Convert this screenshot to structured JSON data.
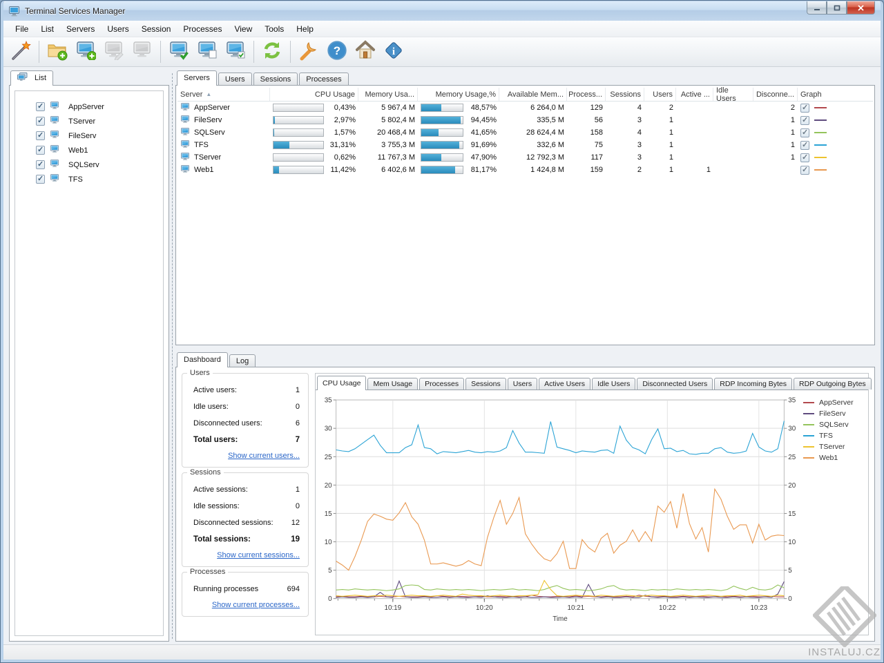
{
  "window": {
    "title": "Terminal Services Manager"
  },
  "titlebar_buttons": {
    "minimize": "minimize",
    "maximize": "maximize",
    "close": "close"
  },
  "menu": {
    "items": [
      "File",
      "List",
      "Servers",
      "Users",
      "Session",
      "Processes",
      "View",
      "Tools",
      "Help"
    ]
  },
  "toolbar": {
    "buttons": [
      {
        "icon": "wizard-wand-icon",
        "enabled": true
      },
      {
        "separator": true
      },
      {
        "icon": "add-group-folder-icon",
        "enabled": true
      },
      {
        "icon": "add-server-icon",
        "enabled": true
      },
      {
        "icon": "edit-server-icon",
        "enabled": false
      },
      {
        "icon": "delete-server-icon",
        "enabled": false
      },
      {
        "separator": true
      },
      {
        "icon": "connect-server-icon",
        "enabled": true
      },
      {
        "icon": "disconnect-server-icon",
        "enabled": true
      },
      {
        "icon": "connect-checked-icon",
        "enabled": true
      },
      {
        "separator": true
      },
      {
        "icon": "refresh-icon",
        "enabled": true
      },
      {
        "separator": true
      },
      {
        "icon": "options-wrench-icon",
        "enabled": true
      },
      {
        "icon": "help-icon",
        "enabled": true
      },
      {
        "icon": "home-icon",
        "enabled": true
      },
      {
        "icon": "about-info-icon",
        "enabled": true
      }
    ]
  },
  "sidebar": {
    "tab_label": "List",
    "servers": [
      {
        "name": "AppServer",
        "checked": true
      },
      {
        "name": "TServer",
        "checked": true
      },
      {
        "name": "FileServ",
        "checked": true
      },
      {
        "name": "Web1",
        "checked": true
      },
      {
        "name": "SQLServ",
        "checked": true
      },
      {
        "name": "TFS",
        "checked": true
      }
    ]
  },
  "main_tabs": {
    "items": [
      "Servers",
      "Users",
      "Sessions",
      "Processes"
    ],
    "active": "Servers"
  },
  "servers_table": {
    "columns": [
      "Server",
      "CPU Usage",
      "Memory Usa...",
      "Memory Usage,%",
      "Available Mem...",
      "Process...",
      "Sessions",
      "Users",
      "Active ...",
      "Idle Users",
      "Disconne...",
      "Graph"
    ],
    "sort_column": "Server",
    "rows": [
      {
        "name": "AppServer",
        "cpu_pct": 0.43,
        "cpu_text": "0,43%",
        "mem": "5 967,4 M",
        "mem_pct": 48.57,
        "mem_pct_text": "48,57%",
        "avail": "6 264,0 M",
        "processes": "129",
        "sessions": "4",
        "users": "2",
        "active": "",
        "idle": "",
        "disconnected": "2",
        "graph_checked": true,
        "color": "#b2484d"
      },
      {
        "name": "FileServ",
        "cpu_pct": 2.97,
        "cpu_text": "2,97%",
        "mem": "5 802,4 M",
        "mem_pct": 94.45,
        "mem_pct_text": "94,45%",
        "avail": "335,5 M",
        "processes": "56",
        "sessions": "3",
        "users": "1",
        "active": "",
        "idle": "",
        "disconnected": "1",
        "graph_checked": true,
        "color": "#5f4b7e"
      },
      {
        "name": "SQLServ",
        "cpu_pct": 1.57,
        "cpu_text": "1,57%",
        "mem": "20 468,4 M",
        "mem_pct": 41.65,
        "mem_pct_text": "41,65%",
        "avail": "28 624,4 M",
        "processes": "158",
        "sessions": "4",
        "users": "1",
        "active": "",
        "idle": "",
        "disconnected": "1",
        "graph_checked": true,
        "color": "#94c45c"
      },
      {
        "name": "TFS",
        "cpu_pct": 31.31,
        "cpu_text": "31,31%",
        "mem": "3 755,3 M",
        "mem_pct": 91.69,
        "mem_pct_text": "91,69%",
        "avail": "332,6 M",
        "processes": "75",
        "sessions": "3",
        "users": "1",
        "active": "",
        "idle": "",
        "disconnected": "1",
        "graph_checked": true,
        "color": "#2aa3d5"
      },
      {
        "name": "TServer",
        "cpu_pct": 0.62,
        "cpu_text": "0,62%",
        "mem": "11 767,3 M",
        "mem_pct": 47.9,
        "mem_pct_text": "47,90%",
        "avail": "12 792,3 M",
        "processes": "117",
        "sessions": "3",
        "users": "1",
        "active": "",
        "idle": "",
        "disconnected": "1",
        "graph_checked": true,
        "color": "#edc32f"
      },
      {
        "name": "Web1",
        "cpu_pct": 11.42,
        "cpu_text": "11,42%",
        "mem": "6 402,6 M",
        "mem_pct": 81.17,
        "mem_pct_text": "81,17%",
        "avail": "1 424,8 M",
        "processes": "159",
        "sessions": "2",
        "users": "1",
        "active": "1",
        "idle": "",
        "disconnected": "",
        "graph_checked": true,
        "color": "#e9984f"
      }
    ]
  },
  "bottom_tabs": {
    "items": [
      "Dashboard",
      "Log"
    ],
    "active": "Dashboard"
  },
  "dashboard": {
    "users": {
      "title": "Users",
      "rows": [
        {
          "label": "Active users:",
          "value": "1"
        },
        {
          "label": "Idle users:",
          "value": "0"
        },
        {
          "label": "Disconnected users:",
          "value": "6"
        }
      ],
      "total_label": "Total users:",
      "total_value": "7",
      "link": "Show current users..."
    },
    "sessions": {
      "title": "Sessions",
      "rows": [
        {
          "label": "Active sessions:",
          "value": "1"
        },
        {
          "label": "Idle sessions:",
          "value": "0"
        },
        {
          "label": "Disconnected sessions:",
          "value": "12"
        }
      ],
      "total_label": "Total sessions:",
      "total_value": "19",
      "link": "Show current sessions..."
    },
    "processes": {
      "title": "Processes",
      "rows": [
        {
          "label": "Running processes",
          "value": "694"
        }
      ],
      "link": "Show current processes..."
    }
  },
  "chart_tabs": {
    "items": [
      "CPU Usage",
      "Mem Usage",
      "Processes",
      "Sessions",
      "Users",
      "Active Users",
      "Idle Users",
      "Disconnected Users",
      "RDP Incoming Bytes",
      "RDP Outgoing Bytes"
    ],
    "active": "CPU Usage"
  },
  "chart_data": {
    "type": "line",
    "title": "CPU Usage",
    "xlabel": "Time",
    "ylabel": "",
    "ylim": [
      0,
      35
    ],
    "yticks": [
      0,
      5,
      10,
      15,
      20,
      25,
      30,
      35
    ],
    "grid": true,
    "legend_position": "right",
    "x_ticks": [
      {
        "index": 9,
        "label": "10:19"
      },
      {
        "index": 23.5,
        "label": "10:20"
      },
      {
        "index": 38,
        "label": "10:21"
      },
      {
        "index": 52.5,
        "label": "10:22"
      },
      {
        "index": 67,
        "label": "10:23"
      }
    ],
    "series": [
      {
        "name": "AppServer",
        "color": "#b2484d",
        "values": [
          0.3,
          0.4,
          0.3,
          0.3,
          0.4,
          0.3,
          0.3,
          0.4,
          0.3,
          0.3,
          0.4,
          0.3,
          0.3,
          0.3,
          0.4,
          0.3,
          0.5,
          0.4,
          0.3,
          0.3,
          0.4,
          0.3,
          0.3,
          0.4,
          0.3,
          0.3,
          0.4,
          0.3,
          0.4,
          0.3,
          0.3,
          0.6,
          0.4,
          0.3,
          0.3,
          0.4,
          0.3,
          0.3,
          0.5,
          0.3,
          0.4,
          0.3,
          0.3,
          0.4,
          0.3,
          0.3,
          0.4,
          0.3,
          0.6,
          0.4,
          0.3,
          0.3,
          0.4,
          0.3,
          0.3,
          0.4,
          0.3,
          0.3,
          0.4,
          0.3,
          0.3,
          0.4,
          0.3,
          0.4,
          0.3,
          0.3,
          0.4,
          0.3,
          0.3,
          0.4,
          0.3,
          0.3
        ]
      },
      {
        "name": "FileServ",
        "color": "#5f4b7e",
        "values": [
          0.2,
          0.3,
          0.2,
          0.2,
          0.3,
          0.2,
          0.3,
          1.1,
          0.3,
          0.2,
          3.1,
          0.3,
          0.2,
          0.2,
          0.3,
          0.2,
          0.2,
          0.3,
          0.2,
          0.3,
          0.2,
          0.2,
          0.3,
          0.2,
          0.5,
          0.3,
          0.2,
          0.2,
          0.3,
          0.2,
          0.3,
          0.2,
          0.2,
          0.3,
          0.2,
          0.2,
          0.3,
          0.2,
          0.3,
          0.2,
          2.5,
          0.4,
          0.2,
          0.3,
          0.2,
          0.2,
          0.3,
          0.2,
          0.2,
          0.6,
          0.3,
          0.2,
          0.3,
          0.2,
          0.2,
          0.3,
          0.2,
          0.3,
          0.2,
          0.2,
          0.3,
          0.2,
          0.2,
          0.3,
          0.2,
          0.3,
          0.2,
          0.2,
          0.3,
          0.2,
          0.8,
          3.0
        ]
      },
      {
        "name": "SQLServ",
        "color": "#94c45c",
        "values": [
          1.5,
          1.6,
          1.5,
          1.7,
          1.6,
          1.5,
          1.6,
          1.5,
          1.4,
          1.5,
          1.7,
          2.3,
          2.4,
          2.3,
          1.6,
          1.5,
          1.7,
          1.6,
          1.5,
          1.6,
          1.5,
          1.6,
          1.5,
          1.4,
          1.5,
          1.6,
          1.5,
          1.6,
          1.7,
          1.5,
          1.6,
          1.5,
          1.4,
          1.6,
          2.0,
          2.3,
          1.8,
          1.5,
          1.6,
          1.5,
          1.4,
          1.5,
          1.7,
          2.1,
          2.3,
          1.7,
          1.5,
          1.6,
          1.5,
          1.4,
          1.6,
          1.5,
          1.6,
          1.5,
          1.7,
          1.6,
          1.5,
          1.6,
          1.5,
          1.6,
          1.5,
          1.4,
          1.6,
          2.2,
          1.8,
          1.5,
          2.0,
          1.6,
          1.5,
          1.7,
          2.4,
          1.9
        ]
      },
      {
        "name": "TFS",
        "color": "#2aa3d5",
        "values": [
          26.2,
          26.0,
          25.9,
          26.4,
          27.2,
          28.0,
          28.8,
          27.0,
          25.7,
          25.7,
          25.7,
          26.6,
          27.1,
          30.6,
          26.6,
          26.4,
          25.5,
          25.9,
          25.8,
          25.7,
          25.9,
          26.1,
          25.8,
          25.7,
          25.9,
          25.8,
          26.0,
          26.6,
          29.6,
          27.4,
          25.8,
          25.8,
          25.7,
          25.6,
          31.2,
          26.7,
          26.4,
          26.1,
          25.7,
          26.0,
          25.9,
          25.8,
          26.1,
          26.2,
          25.6,
          30.4,
          27.9,
          26.6,
          26.2,
          25.5,
          28.0,
          29.9,
          26.4,
          26.5,
          25.9,
          26.1,
          25.5,
          25.4,
          25.6,
          25.6,
          26.4,
          26.6,
          25.8,
          25.6,
          25.7,
          26.0,
          29.1,
          26.7,
          26.0,
          25.8,
          26.4,
          31.3
        ]
      },
      {
        "name": "TServer",
        "color": "#edc32f",
        "values": [
          0.5,
          0.4,
          0.5,
          0.6,
          0.5,
          0.4,
          0.5,
          0.5,
          0.6,
          0.5,
          0.4,
          0.5,
          0.6,
          0.5,
          0.5,
          0.4,
          0.5,
          0.6,
          0.5,
          0.4,
          0.8,
          0.6,
          0.5,
          0.5,
          0.4,
          0.5,
          0.6,
          0.5,
          0.4,
          0.5,
          0.5,
          0.6,
          0.7,
          3.2,
          1.6,
          0.5,
          0.4,
          0.5,
          0.6,
          0.5,
          0.5,
          0.4,
          0.6,
          0.5,
          0.4,
          0.5,
          0.6,
          0.5,
          0.4,
          0.5,
          0.6,
          0.5,
          0.5,
          0.4,
          0.5,
          0.6,
          0.5,
          0.4,
          0.5,
          0.6,
          0.5,
          0.4,
          0.5,
          0.5,
          0.6,
          0.4,
          0.5,
          0.6,
          0.5,
          0.4,
          0.6,
          0.5
        ]
      },
      {
        "name": "Web1",
        "color": "#e9984f",
        "values": [
          6.6,
          5.9,
          5.0,
          7.4,
          10.3,
          13.6,
          14.9,
          14.5,
          14.0,
          13.8,
          15.1,
          16.9,
          14.4,
          13.1,
          10.3,
          6.1,
          6.1,
          6.3,
          6.0,
          5.7,
          6.0,
          6.7,
          6.1,
          5.8,
          10.8,
          14.3,
          17.3,
          13.1,
          15.0,
          17.8,
          11.4,
          9.6,
          8.1,
          7.0,
          6.6,
          7.9,
          10.1,
          5.3,
          5.3,
          10.4,
          9.0,
          8.2,
          10.6,
          11.5,
          8.0,
          9.4,
          10.1,
          12.1,
          10.0,
          11.8,
          10.1,
          16.3,
          15.2,
          17.1,
          12.4,
          18.5,
          13.2,
          10.5,
          12.5,
          8.2,
          19.3,
          17.5,
          14.5,
          12.2,
          13.0,
          13.0,
          9.8,
          13.1,
          10.3,
          11.0,
          11.2,
          11.1
        ]
      }
    ]
  },
  "watermark": {
    "text": "INSTALUJ.CZ"
  }
}
